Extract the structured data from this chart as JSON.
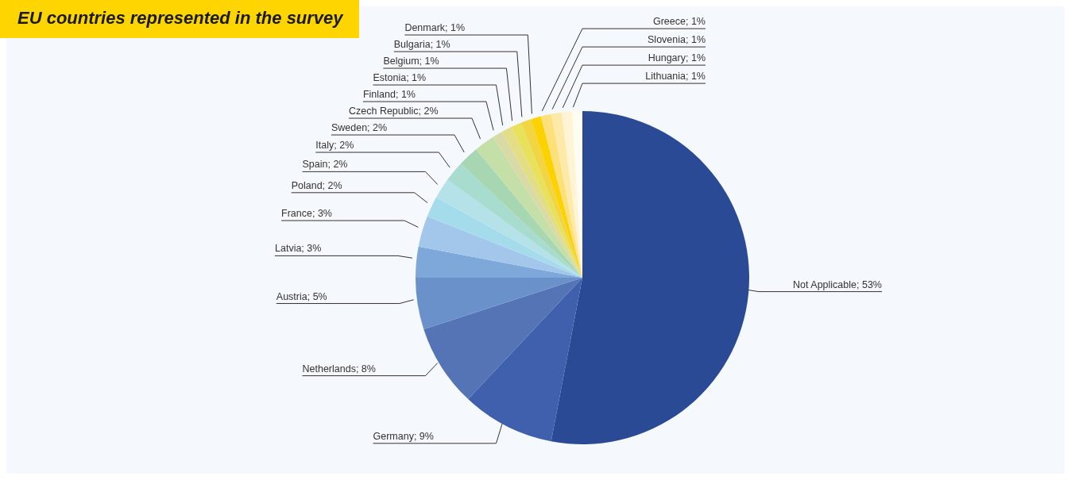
{
  "chart_data": {
    "type": "pie",
    "title": "EU countries represented in the survey",
    "categories": [
      "Not Applicable",
      "Germany",
      "Netherlands",
      "Austria",
      "Latvia",
      "France",
      "Poland",
      "Spain",
      "Italy",
      "Sweden",
      "Czech Republic",
      "Finland",
      "Estonia",
      "Belgium",
      "Bulgaria",
      "Denmark",
      "Greece",
      "Slovenia",
      "Hungary",
      "Lithuania"
    ],
    "values": [
      53,
      9,
      8,
      5,
      3,
      3,
      2,
      2,
      2,
      2,
      2,
      1,
      1,
      1,
      1,
      1,
      1,
      1,
      1,
      1
    ],
    "value_labels": [
      "53%",
      "9%",
      "8%",
      "5%",
      "3%",
      "3%",
      "2%",
      "2%",
      "2%",
      "2%",
      "2%",
      "1%",
      "1%",
      "1%",
      "1%",
      "1%",
      "1%",
      "1%",
      "1%",
      "1%"
    ],
    "colors": [
      "#2a4a96",
      "#405fad",
      "#5474b6",
      "#6a91c9",
      "#7ea8da",
      "#a3c7ea",
      "#a5dcec",
      "#b5e2e8",
      "#a8dccf",
      "#a6d6b2",
      "#c4dfa8",
      "#d8dba6",
      "#e3dd86",
      "#e8e15c",
      "#f2d542",
      "#fcd200",
      "#fde07a",
      "#feeaa8",
      "#fff4d4",
      "#fffdf2"
    ]
  }
}
